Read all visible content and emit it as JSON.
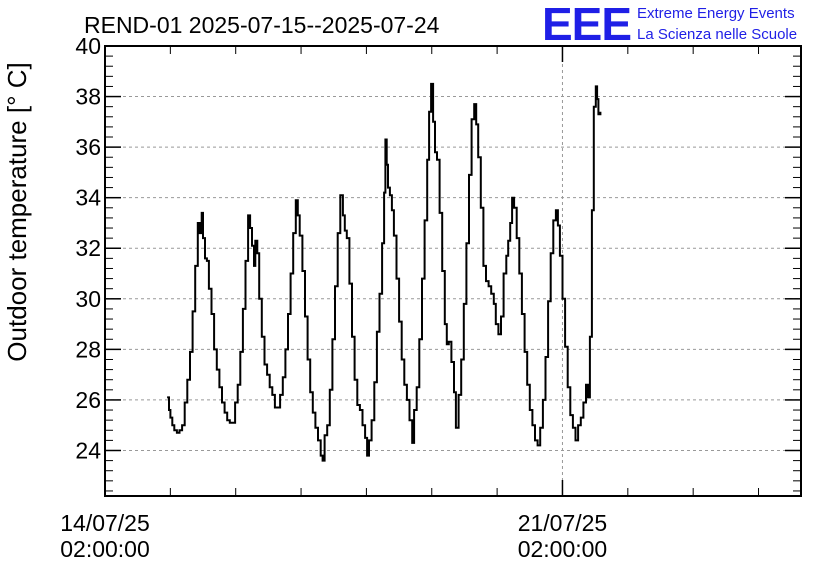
{
  "chart_data": {
    "type": "line",
    "title": "REND-01 2025-07-15--2025-07-24",
    "ylabel": "Outdoor temperature [° C]",
    "xlabel": "",
    "ylim": [
      22.2,
      40
    ],
    "yticks": [
      24,
      26,
      28,
      30,
      32,
      34,
      36,
      38,
      40
    ],
    "xlim": [
      0,
      10.65
    ],
    "xticks": [
      {
        "x": 0,
        "label_line1": "14/07/25",
        "label_line2": "02:00:00"
      },
      {
        "x": 7,
        "label_line1": "21/07/25",
        "label_line2": "02:00:00"
      }
    ],
    "grid": true,
    "x_units": "days since 14/07/25 02:00:00",
    "series": [
      {
        "name": "",
        "points": [
          [
            0.95,
            26.1
          ],
          [
            0.98,
            25.6
          ],
          [
            1.0,
            25.3
          ],
          [
            1.03,
            25.0
          ],
          [
            1.06,
            24.8
          ],
          [
            1.1,
            24.7
          ],
          [
            1.14,
            24.8
          ],
          [
            1.18,
            25.0
          ],
          [
            1.22,
            25.9
          ],
          [
            1.26,
            26.8
          ],
          [
            1.3,
            27.9
          ],
          [
            1.34,
            29.5
          ],
          [
            1.38,
            31.3
          ],
          [
            1.42,
            33.0
          ],
          [
            1.45,
            32.6
          ],
          [
            1.48,
            33.4
          ],
          [
            1.5,
            32.4
          ],
          [
            1.53,
            31.6
          ],
          [
            1.56,
            31.5
          ],
          [
            1.59,
            30.4
          ],
          [
            1.63,
            29.4
          ],
          [
            1.67,
            28.0
          ],
          [
            1.71,
            27.2
          ],
          [
            1.75,
            26.5
          ],
          [
            1.79,
            25.9
          ],
          [
            1.83,
            25.5
          ],
          [
            1.87,
            25.2
          ],
          [
            1.91,
            25.1
          ],
          [
            1.95,
            25.1
          ],
          [
            1.99,
            25.9
          ],
          [
            2.03,
            26.6
          ],
          [
            2.07,
            27.9
          ],
          [
            2.11,
            29.6
          ],
          [
            2.15,
            31.5
          ],
          [
            2.19,
            33.3
          ],
          [
            2.22,
            32.8
          ],
          [
            2.25,
            32.1
          ],
          [
            2.28,
            31.3
          ],
          [
            2.3,
            32.3
          ],
          [
            2.33,
            31.8
          ],
          [
            2.36,
            30.0
          ],
          [
            2.4,
            28.5
          ],
          [
            2.44,
            27.4
          ],
          [
            2.48,
            27.0
          ],
          [
            2.52,
            26.5
          ],
          [
            2.56,
            26.2
          ],
          [
            2.6,
            25.7
          ],
          [
            2.64,
            25.7
          ],
          [
            2.68,
            26.2
          ],
          [
            2.72,
            26.9
          ],
          [
            2.76,
            28.0
          ],
          [
            2.8,
            29.4
          ],
          [
            2.84,
            31.0
          ],
          [
            2.88,
            32.6
          ],
          [
            2.92,
            33.9
          ],
          [
            2.95,
            33.3
          ],
          [
            2.98,
            32.5
          ],
          [
            3.02,
            31.1
          ],
          [
            3.06,
            29.3
          ],
          [
            3.1,
            27.6
          ],
          [
            3.14,
            26.3
          ],
          [
            3.18,
            25.5
          ],
          [
            3.22,
            24.9
          ],
          [
            3.26,
            24.4
          ],
          [
            3.3,
            23.8
          ],
          [
            3.33,
            23.6
          ],
          [
            3.36,
            24.6
          ],
          [
            3.4,
            25.0
          ],
          [
            3.44,
            26.4
          ],
          [
            3.48,
            28.4
          ],
          [
            3.52,
            30.5
          ],
          [
            3.56,
            32.6
          ],
          [
            3.6,
            34.1
          ],
          [
            3.64,
            33.3
          ],
          [
            3.67,
            32.7
          ],
          [
            3.7,
            32.4
          ],
          [
            3.74,
            30.6
          ],
          [
            3.78,
            28.5
          ],
          [
            3.82,
            26.8
          ],
          [
            3.86,
            25.8
          ],
          [
            3.9,
            25.6
          ],
          [
            3.94,
            25.0
          ],
          [
            3.98,
            24.5
          ],
          [
            4.01,
            23.8
          ],
          [
            4.04,
            24.4
          ],
          [
            4.08,
            25.2
          ],
          [
            4.12,
            26.7
          ],
          [
            4.16,
            28.7
          ],
          [
            4.2,
            30.2
          ],
          [
            4.24,
            32.2
          ],
          [
            4.27,
            34.2
          ],
          [
            4.29,
            36.3
          ],
          [
            4.31,
            35.3
          ],
          [
            4.33,
            34.4
          ],
          [
            4.36,
            34.1
          ],
          [
            4.39,
            33.5
          ],
          [
            4.42,
            32.5
          ],
          [
            4.46,
            30.8
          ],
          [
            4.5,
            29.1
          ],
          [
            4.54,
            27.6
          ],
          [
            4.58,
            26.6
          ],
          [
            4.62,
            26.0
          ],
          [
            4.66,
            25.2
          ],
          [
            4.7,
            24.3
          ],
          [
            4.73,
            25.6
          ],
          [
            4.77,
            26.5
          ],
          [
            4.81,
            28.4
          ],
          [
            4.85,
            30.8
          ],
          [
            4.89,
            33.1
          ],
          [
            4.93,
            35.5
          ],
          [
            4.96,
            37.4
          ],
          [
            4.99,
            38.5
          ],
          [
            5.02,
            37.0
          ],
          [
            5.05,
            35.8
          ],
          [
            5.08,
            35.5
          ],
          [
            5.12,
            33.4
          ],
          [
            5.16,
            31.1
          ],
          [
            5.2,
            29.0
          ],
          [
            5.23,
            28.2
          ],
          [
            5.26,
            28.3
          ],
          [
            5.3,
            27.5
          ],
          [
            5.34,
            26.3
          ],
          [
            5.37,
            24.9
          ],
          [
            5.41,
            26.2
          ],
          [
            5.45,
            27.6
          ],
          [
            5.49,
            29.8
          ],
          [
            5.53,
            32.2
          ],
          [
            5.57,
            34.9
          ],
          [
            5.61,
            37.1
          ],
          [
            5.65,
            37.7
          ],
          [
            5.68,
            36.9
          ],
          [
            5.71,
            35.6
          ],
          [
            5.75,
            33.6
          ],
          [
            5.79,
            31.3
          ],
          [
            5.83,
            30.7
          ],
          [
            5.87,
            30.5
          ],
          [
            5.91,
            30.2
          ],
          [
            5.95,
            29.8
          ],
          [
            5.98,
            29.0
          ],
          [
            6.02,
            28.6
          ],
          [
            6.06,
            29.3
          ],
          [
            6.1,
            31.0
          ],
          [
            6.14,
            31.7
          ],
          [
            6.17,
            32.3
          ],
          [
            6.2,
            33.0
          ],
          [
            6.23,
            34.0
          ],
          [
            6.26,
            33.6
          ],
          [
            6.3,
            32.4
          ],
          [
            6.34,
            31.0
          ],
          [
            6.38,
            29.4
          ],
          [
            6.42,
            27.9
          ],
          [
            6.46,
            26.6
          ],
          [
            6.5,
            25.6
          ],
          [
            6.54,
            25.0
          ],
          [
            6.58,
            24.4
          ],
          [
            6.62,
            24.2
          ],
          [
            6.66,
            24.9
          ],
          [
            6.7,
            26.0
          ],
          [
            6.74,
            27.7
          ],
          [
            6.78,
            29.9
          ],
          [
            6.82,
            31.8
          ],
          [
            6.86,
            33.1
          ],
          [
            6.9,
            33.5
          ],
          [
            6.93,
            32.9
          ],
          [
            6.96,
            31.7
          ],
          [
            7.0,
            30.0
          ],
          [
            7.04,
            28.1
          ],
          [
            7.08,
            26.5
          ],
          [
            7.12,
            25.4
          ],
          [
            7.16,
            24.9
          ],
          [
            7.2,
            24.4
          ],
          [
            7.24,
            25.0
          ],
          [
            7.28,
            25.3
          ],
          [
            7.32,
            25.9
          ],
          [
            7.36,
            26.6
          ],
          [
            7.39,
            26.1
          ],
          [
            7.42,
            28.5
          ],
          [
            7.45,
            33.5
          ],
          [
            7.48,
            37.6
          ],
          [
            7.51,
            38.4
          ],
          [
            7.53,
            37.9
          ],
          [
            7.55,
            37.3
          ],
          [
            7.58,
            37.4
          ]
        ]
      }
    ]
  },
  "logo": {
    "letters": "EEE",
    "line1": "Extreme Energy Events",
    "line2": "La Scienza nelle Scuole",
    "color": "#1f1fe6"
  },
  "colors": {
    "line": "#000000",
    "grid": "#999999",
    "frame": "#000000"
  }
}
